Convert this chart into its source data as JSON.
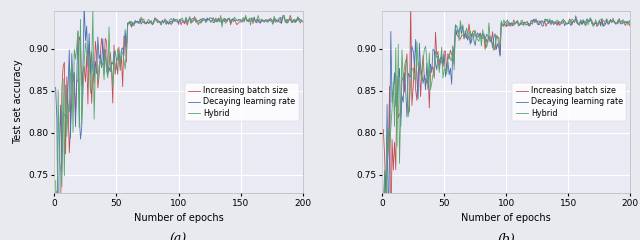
{
  "fig_width": 6.4,
  "fig_height": 2.4,
  "dpi": 100,
  "background_color": "#e8eaf0",
  "axes_background": "#eaeaf4",
  "grid_color": "white",
  "line_colors": {
    "decay": "#4c72b0",
    "hybrid": "#55a868",
    "increase": "#c44e52"
  },
  "line_width": 0.6,
  "legend_labels": [
    "Decaying learning rate",
    "Hybrid",
    "Increasing batch size"
  ],
  "xlabel": "Number of epochs",
  "ylabel": "Test set accuracy",
  "xlim": [
    0,
    200
  ],
  "panel_a": {
    "ylim": [
      0.728,
      0.945
    ],
    "yticks": [
      0.75,
      0.8,
      0.85,
      0.9
    ],
    "xticks": [
      0,
      50,
      100,
      150,
      200
    ],
    "label": "(a)"
  },
  "panel_b": {
    "ylim": [
      0.728,
      0.945
    ],
    "yticks": [
      0.75,
      0.8,
      0.85,
      0.9
    ],
    "xticks": [
      0,
      50,
      100,
      150,
      200
    ],
    "label": "(b)"
  }
}
